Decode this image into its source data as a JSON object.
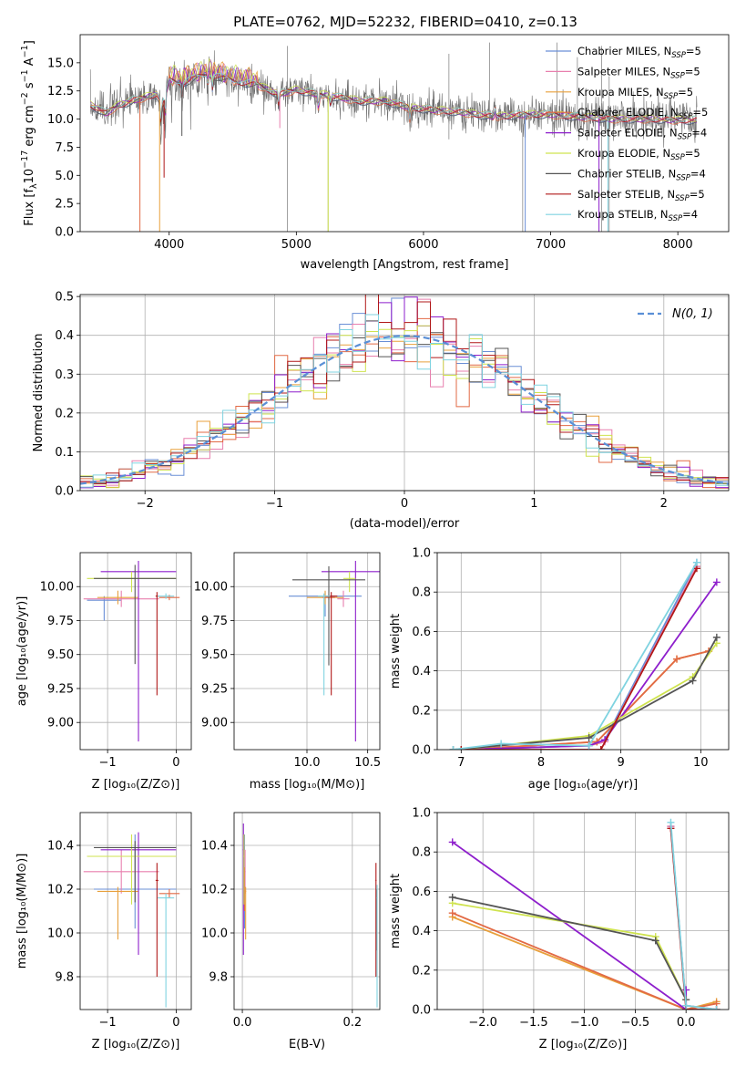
{
  "figure": {
    "title": "PLATE=0762, MJD=52232, FIBERID=0410, z=0.13"
  },
  "colors": {
    "Chabrier MILES": "#6a8fd6",
    "Salpeter MILES": "#e87fae",
    "Kroupa MILES": "#e8a03c",
    "Chabrier ELODIE": "#e26a45",
    "Salpeter ELODIE": "#8e1fcc",
    "Kroupa ELODIE": "#cfe34f",
    "Chabrier STELIB": "#555555",
    "Salpeter STELIB": "#b01818",
    "Kroupa STELIB": "#7fd3e0"
  },
  "chart_data": [
    {
      "id": "spectrum",
      "type": "line",
      "xlabel": "wavelength [Angstrom, rest frame]",
      "ylabel": "Flux [fλ10⁻¹⁷ erg cm⁻² s⁻¹ A⁻¹]",
      "xlim": [
        3300,
        8400
      ],
      "ylim": [
        0,
        17.5
      ],
      "xticks": [
        "4000",
        "5000",
        "6000",
        "7000",
        "8000"
      ],
      "yticks": [
        "0.0",
        "2.5",
        "5.0",
        "7.5",
        "10.0",
        "12.5",
        "15.0"
      ],
      "grid": false,
      "legend_position": "upper-right",
      "legend": [
        {
          "label": "Chabrier MILES, N",
          "sub": "SSP",
          "tail": "=5",
          "key": "Chabrier MILES"
        },
        {
          "label": "Salpeter MILES, N",
          "sub": "SSP",
          "tail": "=5",
          "key": "Salpeter MILES"
        },
        {
          "label": "Kroupa MILES, N",
          "sub": "SSP",
          "tail": "=5",
          "key": "Kroupa MILES"
        },
        {
          "label": "Chabrier ELODIE, N",
          "sub": "SSP",
          "tail": "=5",
          "key": "Chabrier ELODIE"
        },
        {
          "label": "Salpeter ELODIE, N",
          "sub": "SSP",
          "tail": "=4",
          "key": "Salpeter ELODIE"
        },
        {
          "label": "Kroupa ELODIE, N",
          "sub": "SSP",
          "tail": "=5",
          "key": "Kroupa ELODIE"
        },
        {
          "label": "Chabrier STELIB, N",
          "sub": "SSP",
          "tail": "=4",
          "key": "Chabrier STELIB"
        },
        {
          "label": "Salpeter STELIB, N",
          "sub": "SSP",
          "tail": "=5",
          "key": "Salpeter STELIB"
        },
        {
          "label": "Kroupa STELIB, N",
          "sub": "SSP",
          "tail": "=4",
          "key": "Kroupa STELIB"
        }
      ],
      "continuum": [
        [
          3380,
          11.3
        ],
        [
          3500,
          10.5
        ],
        [
          3600,
          11.2
        ],
        [
          3700,
          11.6
        ],
        [
          3800,
          11.9
        ],
        [
          3900,
          12.2
        ],
        [
          3950,
          11.2
        ],
        [
          4000,
          13.5
        ],
        [
          4100,
          13.2
        ],
        [
          4200,
          13.6
        ],
        [
          4300,
          14.0
        ],
        [
          4500,
          13.4
        ],
        [
          4700,
          13.0
        ],
        [
          4861,
          12.2
        ],
        [
          5000,
          12.6
        ],
        [
          5175,
          12.2
        ],
        [
          5300,
          12.0
        ],
        [
          5500,
          11.6
        ],
        [
          5700,
          11.6
        ],
        [
          5900,
          11.0
        ],
        [
          6100,
          10.8
        ],
        [
          6300,
          10.6
        ],
        [
          6563,
          10.2
        ],
        [
          6800,
          10.4
        ],
        [
          7000,
          10.4
        ],
        [
          7200,
          10.2
        ],
        [
          7500,
          10.0
        ],
        [
          7800,
          10.0
        ],
        [
          8000,
          9.9
        ],
        [
          8150,
          9.9
        ]
      ],
      "features": [
        [
          3934,
          -6
        ],
        [
          3969,
          -6
        ],
        [
          4101,
          -3
        ],
        [
          4304,
          -3
        ],
        [
          4340,
          -3
        ],
        [
          4861,
          -3
        ],
        [
          5175,
          -4
        ],
        [
          5270,
          -2
        ],
        [
          5893,
          -3
        ],
        [
          6563,
          2
        ]
      ],
      "spikes": [
        [
          4930,
          0,
          16.5
        ],
        [
          5250,
          0,
          10.8
        ],
        [
          6200,
          8.2,
          15.8
        ],
        [
          6520,
          9.5,
          16.8
        ],
        [
          6780,
          0,
          10.3
        ],
        [
          7050,
          9.0,
          16.8
        ],
        [
          7210,
          9.0,
          15.5
        ],
        [
          7400,
          0,
          16.5
        ],
        [
          7460,
          0,
          13.8
        ]
      ],
      "model_drops": [
        [
          3770,
          0
        ],
        [
          3960,
          4.8
        ],
        [
          3925,
          0
        ],
        [
          4100,
          8.5
        ],
        [
          4870,
          9.2
        ],
        [
          5250,
          0
        ],
        [
          6800,
          0
        ],
        [
          7380,
          0
        ],
        [
          7450,
          0
        ]
      ]
    },
    {
      "id": "residuals",
      "type": "line",
      "xlabel": "(data-model)/error",
      "ylabel": "Normed distribution",
      "xlim": [
        -2.5,
        2.5
      ],
      "ylim": [
        0,
        0.505
      ],
      "xticks": [
        "−2",
        "−1",
        "0",
        "1",
        "2"
      ],
      "yticks": [
        "0.0",
        "0.1",
        "0.2",
        "0.3",
        "0.4",
        "0.5"
      ],
      "grid": true,
      "legend_position": "upper-right",
      "legend": [
        {
          "label": "N(0, 1)",
          "style": "dashed",
          "color": "#5a8fd6"
        }
      ],
      "bin_width": 0.1,
      "gaussian": {
        "mean": 0,
        "sigma": 1
      }
    },
    {
      "id": "age-vs-Z",
      "type": "scatter",
      "xlabel": "Z [log₁₀(Z/Z⊙)]",
      "ylabel": "age  [log₁₀(age/yr)]",
      "xlim": [
        -1.4,
        0.22
      ],
      "ylim": [
        8.8,
        10.25
      ],
      "xticks": [
        "−1",
        "0"
      ],
      "yticks": [
        "9.00",
        "9.25",
        "9.50",
        "9.75",
        "10.00"
      ],
      "grid": true,
      "points": [
        {
          "key": "Chabrier MILES",
          "x": -1.05,
          "xerr": 0.25,
          "y": 9.9,
          "yerr_lo": 0.15,
          "yerr_hi": 0.03
        },
        {
          "key": "Salpeter MILES",
          "x": -0.8,
          "xerr": 0.55,
          "y": 9.91,
          "yerr_lo": 0.06,
          "yerr_hi": 0.06
        },
        {
          "key": "Kroupa MILES",
          "x": -0.85,
          "xerr": 0.3,
          "y": 9.92,
          "yerr_lo": 0.05,
          "yerr_hi": 0.05
        },
        {
          "key": "Chabrier ELODIE",
          "x": -0.1,
          "xerr": 0.15,
          "y": 9.92,
          "yerr_lo": 0.02,
          "yerr_hi": 0.02
        },
        {
          "key": "Salpeter ELODIE",
          "x": -0.55,
          "xerr": 0.55,
          "y": 10.11,
          "yerr_lo": 1.25,
          "yerr_hi": 0.08
        },
        {
          "key": "Kroupa ELODIE",
          "x": -0.65,
          "xerr": 0.65,
          "y": 10.06,
          "yerr_lo": 0.1,
          "yerr_hi": 0.05
        },
        {
          "key": "Chabrier STELIB",
          "x": -0.6,
          "xerr": 0.6,
          "y": 10.06,
          "yerr_lo": 0.63,
          "yerr_hi": 0.1
        },
        {
          "key": "Salpeter STELIB",
          "x": -0.28,
          "xerr": 0.02,
          "y": 9.93,
          "yerr_lo": 0.73,
          "yerr_hi": 0.03
        },
        {
          "key": "Kroupa STELIB",
          "x": -0.15,
          "xerr": 0.12,
          "y": 9.93,
          "yerr_lo": 0.02,
          "yerr_hi": 0.02
        }
      ]
    },
    {
      "id": "age-vs-mass",
      "type": "scatter",
      "xlabel": "mass [log₁₀(M/M⊙)]",
      "ylabel": "",
      "xlim": [
        9.4,
        10.6
      ],
      "ylim": [
        8.8,
        10.25
      ],
      "xticks": [
        "10.0",
        "10.5"
      ],
      "yticks": [
        "9.00",
        "9.25",
        "9.50",
        "9.75",
        "10.00"
      ],
      "grid": true,
      "points": [
        {
          "key": "Chabrier MILES",
          "x": 10.15,
          "xerr": 0.3,
          "y": 9.93,
          "yerr_lo": 0.15,
          "yerr_hi": 0.03
        },
        {
          "key": "Salpeter MILES",
          "x": 10.3,
          "xerr": 0.05,
          "y": 9.91,
          "yerr_lo": 0.06,
          "yerr_hi": 0.06
        },
        {
          "key": "Kroupa MILES",
          "x": 10.15,
          "xerr": 0.15,
          "y": 9.92,
          "yerr_lo": 0.05,
          "yerr_hi": 0.05
        },
        {
          "key": "Chabrier ELODIE",
          "x": 10.18,
          "xerr": 0.05,
          "y": 9.92,
          "yerr_lo": 0.02,
          "yerr_hi": 0.02
        },
        {
          "key": "Salpeter ELODIE",
          "x": 10.4,
          "xerr": 0.28,
          "y": 10.11,
          "yerr_lo": 1.25,
          "yerr_hi": 0.08
        },
        {
          "key": "Kroupa ELODIE",
          "x": 10.35,
          "xerr": 0.05,
          "y": 10.06,
          "yerr_lo": 0.1,
          "yerr_hi": 0.05
        },
        {
          "key": "Chabrier STELIB",
          "x": 10.18,
          "xerr": 0.3,
          "y": 10.05,
          "yerr_lo": 0.63,
          "yerr_hi": 0.1
        },
        {
          "key": "Salpeter STELIB",
          "x": 10.2,
          "xerr": 0.05,
          "y": 9.93,
          "yerr_lo": 0.73,
          "yerr_hi": 0.03
        },
        {
          "key": "Kroupa STELIB",
          "x": 10.14,
          "xerr": 0.05,
          "y": 9.93,
          "yerr_lo": 0.73,
          "yerr_hi": 0.02
        }
      ]
    },
    {
      "id": "mass-weight-vs-age",
      "type": "line",
      "xlabel": "age  [log₁₀(age/yr)]",
      "ylabel": "mass weight",
      "xlim": [
        6.7,
        10.35
      ],
      "ylim": [
        0,
        1.0
      ],
      "xticks": [
        "7",
        "8",
        "9",
        "10"
      ],
      "yticks": [
        "0.0",
        "0.2",
        "0.4",
        "0.6",
        "0.8",
        "1.0"
      ],
      "grid": true,
      "series": [
        {
          "key": "Chabrier MILES",
          "x": [
            7.0,
            8.6,
            8.8,
            9.95
          ],
          "y": [
            0.0,
            0.02,
            0.05,
            0.95
          ]
        },
        {
          "key": "Salpeter MILES",
          "x": [
            7.0,
            8.6,
            8.8,
            9.95
          ],
          "y": [
            0.0,
            0.02,
            0.04,
            0.93
          ]
        },
        {
          "key": "Kroupa MILES",
          "x": [
            7.0,
            8.7,
            9.7,
            10.1
          ],
          "y": [
            0.0,
            0.04,
            0.46,
            0.5
          ]
        },
        {
          "key": "Chabrier ELODIE",
          "x": [
            7.0,
            8.7,
            9.7,
            10.1
          ],
          "y": [
            0.0,
            0.04,
            0.46,
            0.5
          ]
        },
        {
          "key": "Salpeter ELODIE",
          "x": [
            7.0,
            8.6,
            8.8,
            10.2
          ],
          "y": [
            0.0,
            0.02,
            0.05,
            0.85
          ]
        },
        {
          "key": "Kroupa ELODIE",
          "x": [
            7.0,
            8.6,
            9.9,
            10.2
          ],
          "y": [
            0.0,
            0.07,
            0.37,
            0.54
          ]
        },
        {
          "key": "Chabrier STELIB",
          "x": [
            6.9,
            8.6,
            9.9,
            10.2
          ],
          "y": [
            0.0,
            0.06,
            0.35,
            0.57
          ]
        },
        {
          "key": "Salpeter STELIB",
          "x": [
            7.0,
            8.75,
            9.95
          ],
          "y": [
            0.0,
            0.0,
            0.92
          ]
        },
        {
          "key": "Kroupa STELIB",
          "x": [
            6.9,
            7.5,
            8.6,
            9.95
          ],
          "y": [
            0.0,
            0.03,
            0.02,
            0.95
          ]
        }
      ]
    },
    {
      "id": "mass-vs-Z",
      "type": "scatter",
      "xlabel": "Z [log₁₀(Z/Z⊙)]",
      "ylabel": "mass [log₁₀(M/M⊙)]",
      "xlim": [
        -1.4,
        0.22
      ],
      "ylim": [
        9.65,
        10.55
      ],
      "xticks": [
        "−1",
        "0"
      ],
      "yticks": [
        "9.8",
        "10.0",
        "10.2",
        "10.4"
      ],
      "grid": true,
      "points": [
        {
          "key": "Chabrier MILES",
          "x": -0.6,
          "xerr": 0.6,
          "y": 10.2,
          "yerr_lo": 0.18,
          "yerr_hi": 0.25
        },
        {
          "key": "Salpeter MILES",
          "x": -0.8,
          "xerr": 0.55,
          "y": 10.28,
          "yerr_lo": 0.1,
          "yerr_hi": 0.1
        },
        {
          "key": "Kroupa MILES",
          "x": -0.85,
          "xerr": 0.3,
          "y": 10.19,
          "yerr_lo": 0.22,
          "yerr_hi": 0.02
        },
        {
          "key": "Chabrier ELODIE",
          "x": -0.1,
          "xerr": 0.15,
          "y": 10.18,
          "yerr_lo": 0.02,
          "yerr_hi": 0.02
        },
        {
          "key": "Salpeter ELODIE",
          "x": -0.55,
          "xerr": 0.55,
          "y": 10.38,
          "yerr_lo": 0.48,
          "yerr_hi": 0.08
        },
        {
          "key": "Kroupa ELODIE",
          "x": -0.65,
          "xerr": 0.65,
          "y": 10.35,
          "yerr_lo": 0.22,
          "yerr_hi": 0.1
        },
        {
          "key": "Chabrier STELIB",
          "x": -0.6,
          "xerr": 0.6,
          "y": 10.39,
          "yerr_lo": 0.25,
          "yerr_hi": 0.03
        },
        {
          "key": "Salpeter STELIB",
          "x": -0.28,
          "xerr": 0.02,
          "y": 10.24,
          "yerr_lo": 0.44,
          "yerr_hi": 0.08
        },
        {
          "key": "Kroupa STELIB",
          "x": -0.15,
          "xerr": 0.12,
          "y": 10.16,
          "yerr_lo": 0.5,
          "yerr_hi": 0.02
        }
      ]
    },
    {
      "id": "mass-vs-EBV",
      "type": "scatter",
      "xlabel": "E(B-V)",
      "ylabel": "",
      "xlim": [
        -0.015,
        0.25
      ],
      "ylim": [
        9.65,
        10.55
      ],
      "xticks": [
        "0.0",
        "0.2"
      ],
      "yticks": [
        "9.8",
        "10.0",
        "10.2",
        "10.4"
      ],
      "grid": true,
      "points": [
        {
          "key": "Chabrier MILES",
          "x": 0.004,
          "xerr": 0.001,
          "y": 10.2,
          "yerr_lo": 0.18,
          "yerr_hi": 0.25
        },
        {
          "key": "Salpeter MILES",
          "x": 0.005,
          "xerr": 0.001,
          "y": 10.28,
          "yerr_lo": 0.1,
          "yerr_hi": 0.1
        },
        {
          "key": "Kroupa MILES",
          "x": 0.006,
          "xerr": 0.001,
          "y": 10.19,
          "yerr_lo": 0.22,
          "yerr_hi": 0.02
        },
        {
          "key": "Chabrier ELODIE",
          "x": 0.004,
          "xerr": 0.001,
          "y": 10.2,
          "yerr_lo": 0.1,
          "yerr_hi": 0.1
        },
        {
          "key": "Salpeter ELODIE",
          "x": 0.002,
          "xerr": 0.001,
          "y": 10.38,
          "yerr_lo": 0.48,
          "yerr_hi": 0.12
        },
        {
          "key": "Kroupa ELODIE",
          "x": 0.003,
          "xerr": 0.001,
          "y": 10.35,
          "yerr_lo": 0.22,
          "yerr_hi": 0.1
        },
        {
          "key": "Chabrier STELIB",
          "x": 0.244,
          "xerr": 0.001,
          "y": 10.17,
          "yerr_lo": 0.25,
          "yerr_hi": 0.03
        },
        {
          "key": "Salpeter STELIB",
          "x": 0.243,
          "xerr": 0.001,
          "y": 10.24,
          "yerr_lo": 0.44,
          "yerr_hi": 0.08
        },
        {
          "key": "Kroupa STELIB",
          "x": 0.245,
          "xerr": 0.001,
          "y": 10.16,
          "yerr_lo": 0.5,
          "yerr_hi": 0.06
        }
      ]
    },
    {
      "id": "mass-weight-vs-Z",
      "type": "line",
      "xlabel": "Z [log₁₀(Z/Z⊙)]",
      "ylabel": "mass weight",
      "xlim": [
        -2.45,
        0.42
      ],
      "ylim": [
        0,
        1.0
      ],
      "xticks": [
        "−2.0",
        "−1.5",
        "−1.0",
        "−0.5",
        "0.0"
      ],
      "yticks": [
        "0.0",
        "0.2",
        "0.4",
        "0.6",
        "0.8",
        "1.0"
      ],
      "grid": true,
      "series": [
        {
          "key": "Chabrier MILES",
          "x": [
            -0.15,
            0.0,
            0.3
          ],
          "y": [
            0.93,
            0.02,
            0.0
          ]
        },
        {
          "key": "Salpeter MILES",
          "x": [
            -0.15,
            0.0,
            0.3
          ],
          "y": [
            0.93,
            0.02,
            0.0
          ]
        },
        {
          "key": "Kroupa MILES",
          "x": [
            -2.3,
            0.0,
            0.3
          ],
          "y": [
            0.47,
            0.0,
            0.04
          ]
        },
        {
          "key": "Chabrier ELODIE",
          "x": [
            -2.3,
            0.0,
            0.3
          ],
          "y": [
            0.49,
            0.0,
            0.03
          ]
        },
        {
          "key": "Salpeter ELODIE",
          "x": [
            -2.3,
            0.0,
            0.0
          ],
          "y": [
            0.85,
            0.0,
            0.1
          ]
        },
        {
          "key": "Kroupa ELODIE",
          "x": [
            -2.3,
            -0.3,
            0.0
          ],
          "y": [
            0.54,
            0.37,
            0.05
          ]
        },
        {
          "key": "Chabrier STELIB",
          "x": [
            -2.3,
            -0.3,
            0.0
          ],
          "y": [
            0.57,
            0.35,
            0.05
          ]
        },
        {
          "key": "Salpeter STELIB",
          "x": [
            -0.15,
            0.0,
            0.3
          ],
          "y": [
            0.92,
            0.0,
            0.0
          ]
        },
        {
          "key": "Kroupa STELIB",
          "x": [
            -0.15,
            0.0,
            0.3
          ],
          "y": [
            0.95,
            0.02,
            0.0
          ]
        }
      ]
    }
  ]
}
